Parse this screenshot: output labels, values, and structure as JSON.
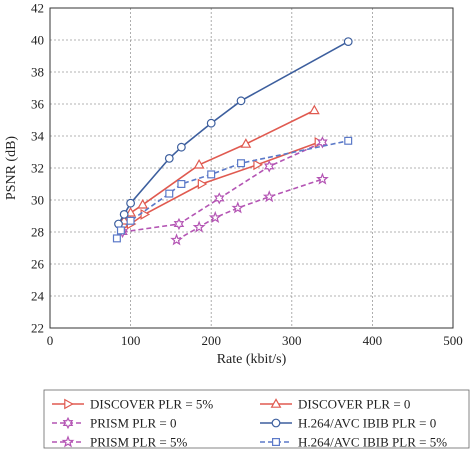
{
  "chart_data": {
    "type": "line",
    "xlabel": "Rate (kbit/s)",
    "ylabel": "PSNR (dB)",
    "xlim": [
      0,
      500
    ],
    "ylim": [
      22,
      42
    ],
    "xticks": [
      0,
      100,
      200,
      300,
      400,
      500
    ],
    "yticks": [
      22,
      24,
      26,
      28,
      30,
      32,
      34,
      36,
      38,
      40,
      42
    ],
    "grid": true,
    "legend_position": "bottom",
    "series": [
      {
        "name": "DISCOVER PLR = 5%",
        "color": "#e05a50",
        "dash": "solid",
        "marker": "triangle-right",
        "x": [
          88,
          100,
          117,
          188,
          257,
          333
        ],
        "y": [
          28.1,
          28.5,
          29.1,
          31.0,
          32.2,
          33.6
        ]
      },
      {
        "name": "DISCOVER PLR = 0",
        "color": "#e05a50",
        "dash": "solid",
        "marker": "triangle-up",
        "x": [
          92,
          100,
          115,
          185,
          243,
          328
        ],
        "y": [
          28.7,
          29.2,
          29.7,
          32.2,
          33.5,
          35.6
        ]
      },
      {
        "name": "PRISM PLR = 0",
        "color": "#b455b4",
        "dash": "dash",
        "marker": "hexagram",
        "x": [
          90,
          160,
          210,
          272,
          338
        ],
        "y": [
          28.0,
          28.5,
          30.1,
          32.1,
          33.6
        ]
      },
      {
        "name": "H.264/AVC IBIB PLR = 0",
        "color": "#3d5f9e",
        "dash": "solid",
        "marker": "circle",
        "x": [
          85,
          92,
          100,
          148,
          163,
          200,
          237,
          370
        ],
        "y": [
          28.5,
          29.1,
          29.8,
          32.6,
          33.3,
          34.8,
          36.2,
          39.9
        ]
      },
      {
        "name": "PRISM PLR = 5%",
        "color": "#b455b4",
        "dash": "dash",
        "marker": "star",
        "x": [
          157,
          185,
          205,
          233,
          272,
          338
        ],
        "y": [
          27.5,
          28.3,
          28.9,
          29.5,
          30.2,
          31.3
        ]
      },
      {
        "name": "H.264/AVC IBIB PLR = 5%",
        "color": "#5b79c8",
        "dash": "dash",
        "marker": "square",
        "x": [
          83,
          88,
          100,
          148,
          163,
          200,
          237,
          370
        ],
        "y": [
          27.6,
          28.1,
          28.7,
          30.4,
          31.0,
          31.6,
          32.3,
          33.7
        ]
      }
    ]
  }
}
